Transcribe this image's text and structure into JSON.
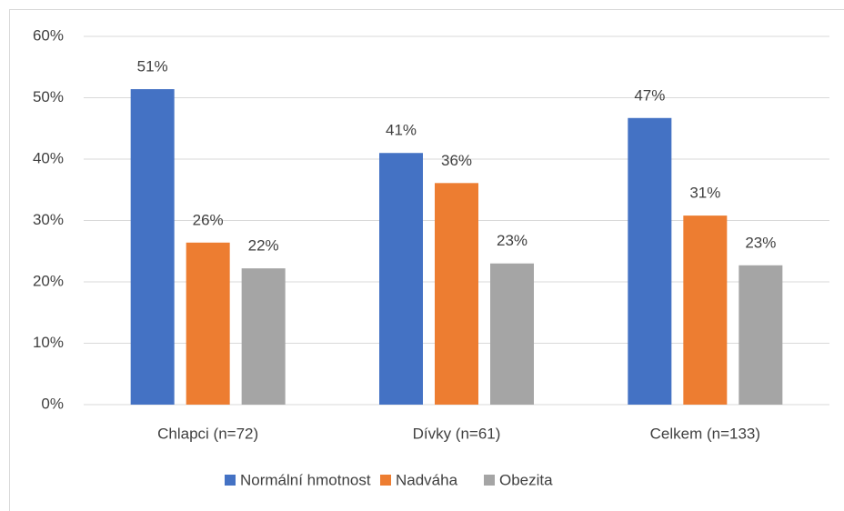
{
  "chart_data": {
    "type": "bar",
    "categories": [
      "Chlapci (n=72)",
      "Dívky (n=61)",
      "Celkem (n=133)"
    ],
    "series": [
      {
        "name": "Normální hmotnost",
        "color": "#4472c4",
        "values": [
          51.4,
          41.0,
          46.7
        ],
        "value_labels": [
          "51%",
          "41%",
          "47%"
        ]
      },
      {
        "name": "Nadváha",
        "color": "#ed7d31",
        "values": [
          26.4,
          36.1,
          30.8
        ],
        "value_labels": [
          "26%",
          "36%",
          "31%"
        ]
      },
      {
        "name": "Obezita",
        "color": "#a5a5a5",
        "values": [
          22.2,
          23.0,
          22.7
        ],
        "value_labels": [
          "22%",
          "23%",
          "23%"
        ]
      }
    ],
    "ylim": [
      0,
      60
    ],
    "yticks": [
      {
        "value": 0,
        "label": "0%"
      },
      {
        "value": 10,
        "label": "10%"
      },
      {
        "value": 20,
        "label": "20%"
      },
      {
        "value": 30,
        "label": "30%"
      },
      {
        "value": 40,
        "label": "40%"
      },
      {
        "value": 50,
        "label": "50%"
      },
      {
        "value": 60,
        "label": "60%"
      }
    ],
    "grid": true,
    "legend": "bottom"
  }
}
